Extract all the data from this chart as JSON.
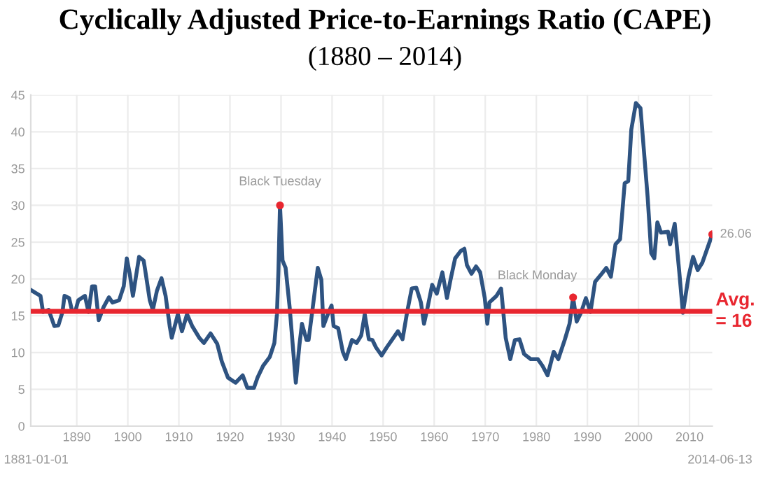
{
  "chart_data": {
    "type": "line",
    "title": "Cyclically Adjusted Price-to-Earnings Ratio (CAPE)",
    "subtitle": "(1880 – 2014)",
    "series": [
      {
        "color": "#2e5381",
        "x": [
          1881.0,
          1882.9,
          1883.4,
          1884.5,
          1885.6,
          1886.4,
          1887.2,
          1887.6,
          1888.5,
          1889.1,
          1889.8,
          1890.3,
          1891.6,
          1892.3,
          1893.0,
          1893.6,
          1894.3,
          1895.2,
          1896.3,
          1897.0,
          1898.3,
          1899.2,
          1899.8,
          1900.4,
          1901.0,
          1902.2,
          1903.1,
          1903.4,
          1904.3,
          1904.9,
          1905.7,
          1906.6,
          1907.4,
          1908.2,
          1908.6,
          1909.8,
          1910.6,
          1911.6,
          1912.6,
          1914.0,
          1914.9,
          1916.2,
          1917.5,
          1918.4,
          1919.6,
          1921.1,
          1922.5,
          1923.4,
          1924.7,
          1925.4,
          1926.5,
          1927.8,
          1928.7,
          1929.2,
          1929.5,
          1929.8,
          1930.3,
          1930.9,
          1931.7,
          1932.3,
          1932.9,
          1933.6,
          1934.1,
          1935.0,
          1935.4,
          1936.1,
          1937.2,
          1937.9,
          1938.3,
          1939.0,
          1939.9,
          1940.3,
          1941.2,
          1942.1,
          1942.7,
          1943.9,
          1944.8,
          1945.7,
          1946.4,
          1947.2,
          1947.9,
          1948.6,
          1949.7,
          1950.7,
          1952.0,
          1952.9,
          1953.8,
          1954.7,
          1955.6,
          1956.5,
          1957.4,
          1958.0,
          1958.7,
          1959.6,
          1960.5,
          1961.6,
          1962.5,
          1963.2,
          1964.1,
          1965.2,
          1965.9,
          1966.4,
          1967.3,
          1968.2,
          1969.0,
          1969.9,
          1970.4,
          1970.8,
          1972.2,
          1973.1,
          1974.0,
          1974.9,
          1975.8,
          1976.7,
          1977.6,
          1978.9,
          1980.3,
          1981.2,
          1982.2,
          1983.4,
          1984.3,
          1985.6,
          1986.5,
          1987.2,
          1987.9,
          1988.8,
          1989.7,
          1990.6,
          1991.5,
          1992.8,
          1993.7,
          1994.6,
          1995.5,
          1996.4,
          1997.3,
          1998.0,
          1998.6,
          1999.5,
          2000.4,
          2001.8,
          2002.5,
          2003.1,
          2003.7,
          2004.4,
          2005.8,
          2006.2,
          2007.1,
          2008.0,
          2008.7,
          2009.8,
          2010.7,
          2011.6,
          2012.5,
          2014.45
        ],
        "values": [
          18.5,
          17.7,
          15.5,
          15.8,
          13.6,
          13.7,
          15.5,
          17.7,
          17.4,
          15.6,
          15.8,
          17.1,
          17.7,
          15.5,
          19.0,
          19.0,
          14.4,
          16.1,
          17.5,
          16.8,
          17.1,
          19.0,
          22.8,
          20.6,
          17.7,
          23.0,
          22.5,
          21.2,
          17.1,
          15.8,
          18.4,
          20.1,
          17.7,
          13.6,
          12.0,
          15.2,
          12.9,
          15.2,
          13.6,
          12.0,
          11.3,
          12.6,
          11.2,
          8.8,
          6.6,
          5.9,
          6.9,
          5.2,
          5.2,
          6.6,
          8.2,
          9.4,
          11.3,
          15.2,
          21.2,
          30.0,
          22.5,
          21.5,
          16.1,
          11.0,
          5.9,
          11.0,
          13.9,
          11.7,
          11.7,
          15.5,
          21.5,
          19.9,
          13.6,
          14.9,
          16.4,
          13.6,
          13.3,
          10.1,
          9.1,
          11.7,
          11.3,
          12.3,
          15.2,
          11.8,
          11.7,
          10.7,
          9.6,
          10.7,
          12.0,
          12.9,
          11.8,
          15.5,
          18.7,
          18.8,
          16.8,
          13.9,
          16.1,
          19.2,
          18.0,
          20.9,
          17.4,
          19.9,
          22.8,
          23.8,
          24.1,
          21.9,
          20.7,
          21.7,
          20.9,
          17.4,
          13.9,
          16.8,
          17.7,
          18.7,
          12.0,
          9.1,
          11.7,
          11.8,
          9.8,
          9.1,
          9.1,
          8.2,
          6.9,
          10.1,
          9.1,
          11.8,
          13.9,
          17.5,
          14.2,
          15.5,
          17.4,
          15.5,
          19.6,
          20.7,
          21.5,
          20.3,
          24.7,
          25.4,
          33.0,
          33.3,
          40.3,
          43.9,
          43.2,
          31.1,
          23.5,
          22.8,
          27.7,
          26.3,
          26.4,
          24.7,
          27.5,
          20.9,
          15.4,
          20.3,
          23.0,
          21.2,
          22.2,
          26.06
        ]
      },
      {
        "type": "scatter",
        "color": "#e8262f",
        "x": [
          1929.8,
          1987.2,
          2014.45
        ],
        "values": [
          30.0,
          17.5,
          26.06
        ],
        "marker": "circle"
      }
    ],
    "xlim": [
      1881,
      2014.45
    ],
    "xticks": [
      1890,
      1900,
      1910,
      1920,
      1930,
      1940,
      1950,
      1960,
      1970,
      1980,
      1990,
      2000,
      2010
    ],
    "ylim": [
      0,
      45
    ],
    "yticks": [
      0,
      5,
      10,
      15,
      20,
      25,
      30,
      35,
      40,
      45
    ],
    "grid": true,
    "ref_lines": [
      {
        "axis": "y",
        "value": 15.6,
        "label": "Avg.\n= 16",
        "color": "#e8262f"
      }
    ],
    "annotations": [
      {
        "text": "Black Tuesday",
        "x": 1929.8,
        "y": 30.0
      },
      {
        "text": "Black Monday",
        "x": 1987.2,
        "y": 17.5
      },
      {
        "text": "26.06",
        "x": 2014.45,
        "y": 26.06
      },
      "1881-01-01",
      "2014-06-13"
    ]
  }
}
